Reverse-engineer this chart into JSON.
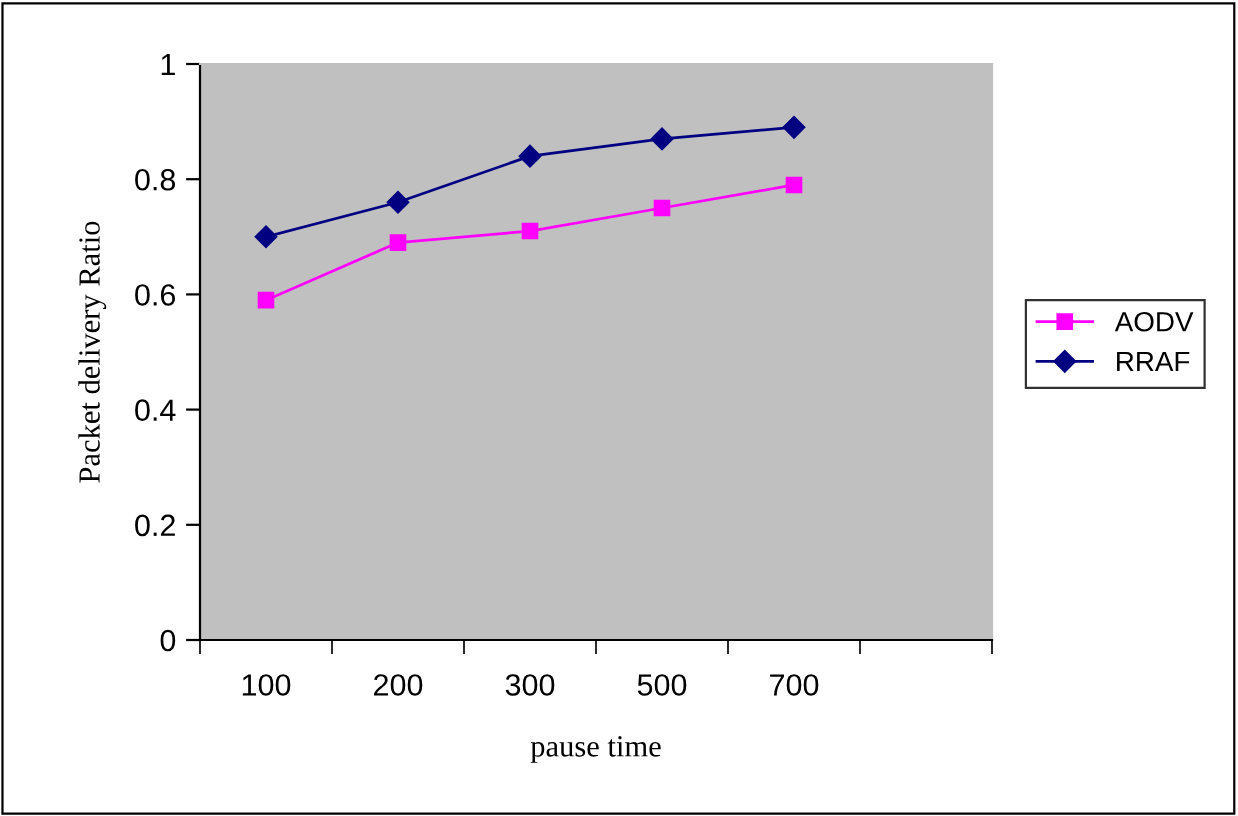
{
  "chart_data": {
    "type": "line",
    "xlabel": "pause time",
    "ylabel": "Packet delivery Ratio",
    "categories": [
      "100",
      "200",
      "300",
      "500",
      "700",
      null
    ],
    "series": [
      {
        "name": "AODV",
        "color": "#ff00ff",
        "marker": "square",
        "values": [
          0.59,
          0.69,
          0.71,
          0.75,
          0.79,
          null
        ]
      },
      {
        "name": "RRAF",
        "color": "#000080",
        "marker": "diamond",
        "values": [
          0.7,
          0.76,
          0.84,
          0.87,
          0.89,
          null
        ]
      }
    ],
    "ylim": [
      0,
      1
    ],
    "yticks": [
      0,
      0.2,
      0.4,
      0.6,
      0.8,
      1
    ],
    "grid": false,
    "legend": "right"
  }
}
